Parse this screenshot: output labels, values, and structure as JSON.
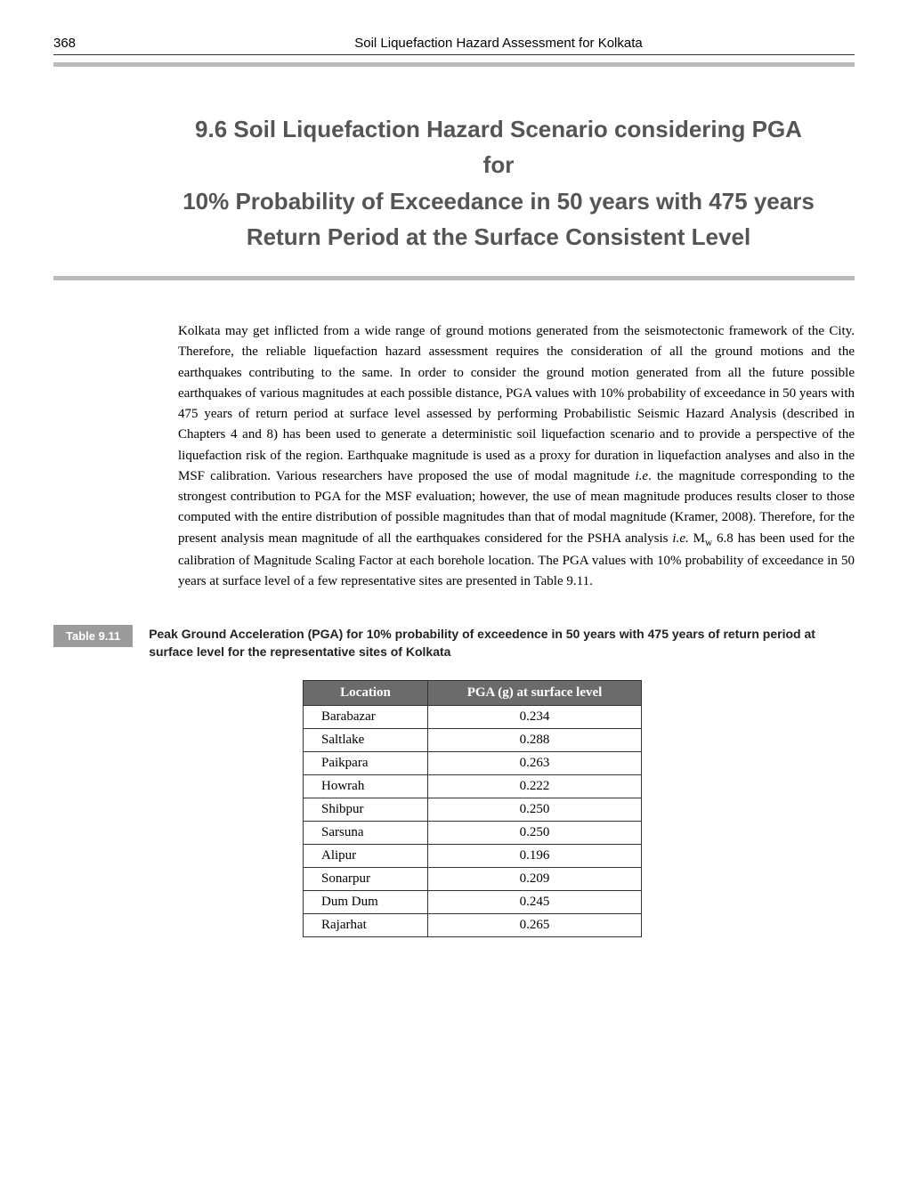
{
  "page_number": "368",
  "running_title": "Soil Liquefaction Hazard Assessment for Kolkata",
  "section": {
    "number": "9.6",
    "title_line1": "9.6  Soil Liquefaction Hazard Scenario considering PGA for",
    "title_line2": "10% Probability of Exceedance in 50 years with 475 years",
    "title_line3": "Return Period at the Surface Consistent Level"
  },
  "paragraph": "Kolkata may get inflicted from a wide range of ground motions generated from the seismotectonic framework of the City. Therefore, the reliable liquefaction hazard assessment requires the consideration of all the ground motions and the earthquakes contributing to the same. In order to consider the ground motion generated from all the future possible earthquakes of various magnitudes at each possible distance, PGA values with 10% probability of exceedance in 50 years with 475 years of return period at surface level assessed by performing Probabilistic Seismic Hazard Analysis (described in Chapters 4 and 8) has been used to generate a deterministic soil liquefaction scenario and to provide a perspective of the liquefaction risk of the region. Earthquake magnitude is used as a proxy for duration in liquefaction analyses and also in the MSF calibration. Various researchers have proposed the use of modal magnitude ",
  "paragraph_ie": "i.e",
  "paragraph_mid": ". the magnitude corresponding to the strongest contribution to PGA for the MSF evaluation; however, the use of mean magnitude produces results closer to those computed with the entire distribution of possible magnitudes than that of modal magnitude (Kramer, 2008). Therefore, for the present analysis mean magnitude of all the earthquakes considered for the PSHA analysis ",
  "paragraph_ie2": "i.e.",
  "paragraph_mw_pre": " M",
  "paragraph_mw_sub": "w",
  "paragraph_end": " 6.8 has been used for the calibration of Magnitude Scaling Factor at each borehole location. The PGA values with 10% probability of exceedance in 50 years at surface level of a few representative sites are presented in Table 9.11.",
  "table_label": "Table 9.11",
  "table_caption": "Peak Ground Acceleration (PGA) for 10% probability of exceedence in 50 years with 475 years of return period at surface level for the representative sites of Kolkata",
  "table_headers": {
    "location": "Location",
    "pga": "PGA (g) at surface level"
  },
  "table_rows": [
    {
      "location": "Barabazar",
      "pga": "0.234"
    },
    {
      "location": "Saltlake",
      "pga": "0.288"
    },
    {
      "location": "Paikpara",
      "pga": "0.263"
    },
    {
      "location": "Howrah",
      "pga": "0.222"
    },
    {
      "location": "Shibpur",
      "pga": "0.250"
    },
    {
      "location": "Sarsuna",
      "pga": "0.250"
    },
    {
      "location": "Alipur",
      "pga": "0.196"
    },
    {
      "location": "Sonarpur",
      "pga": "0.209"
    },
    {
      "location": "Dum Dum",
      "pga": "0.245"
    },
    {
      "location": "Rajarhat",
      "pga": "0.265"
    }
  ],
  "colors": {
    "rule_gray": "#bbbbbb",
    "label_bg": "#9b9b9b",
    "th_bg": "#6b6b6b",
    "heading_color": "#555555"
  }
}
